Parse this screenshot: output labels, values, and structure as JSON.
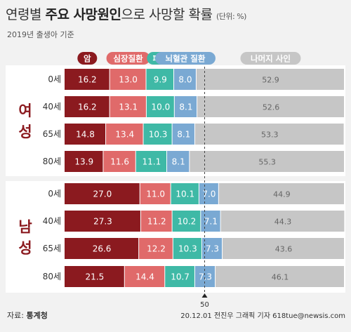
{
  "header": {
    "title_pre": "연령별 ",
    "title_bold": "주요 사망원인",
    "title_post": "으로 사망할 확률",
    "unit": "(단위: %)",
    "subtitle": "2019년 출생아 기준"
  },
  "footer": {
    "source_label": "자료: ",
    "source_name": "통계청",
    "credit": "20.12.01 전진우 그래픽 기자 618tue@newsis.com"
  },
  "chart_data": {
    "type": "bar",
    "stacked": true,
    "orientation": "horizontal",
    "legend_position": "top",
    "reference_line": {
      "value": 50,
      "label": "50"
    },
    "series": [
      {
        "name": "암",
        "color": "#8b1a1f"
      },
      {
        "name": "심장질환",
        "color": "#e06a6a"
      },
      {
        "name": "폐렴",
        "color": "#3fb9a6"
      },
      {
        "name": "뇌혈관 질환",
        "color": "#7aa9d3"
      },
      {
        "name": "나머지 사인",
        "color": "#c6c6c6"
      }
    ],
    "groups": [
      {
        "name": "여성",
        "rows": [
          {
            "age": "0세",
            "values": [
              16.2,
              13.0,
              9.9,
              8.0,
              52.9
            ]
          },
          {
            "age": "40세",
            "values": [
              16.2,
              13.1,
              10.0,
              8.1,
              52.6
            ]
          },
          {
            "age": "65세",
            "values": [
              14.8,
              13.4,
              10.3,
              8.1,
              53.3
            ]
          },
          {
            "age": "80세",
            "values": [
              13.9,
              11.6,
              11.1,
              8.1,
              55.3
            ]
          }
        ]
      },
      {
        "name": "남성",
        "rows": [
          {
            "age": "0세",
            "values": [
              27.0,
              11.0,
              10.1,
              7.0,
              44.9
            ]
          },
          {
            "age": "40세",
            "values": [
              27.3,
              11.2,
              10.2,
              7.1,
              44.3
            ]
          },
          {
            "age": "65세",
            "values": [
              26.6,
              12.2,
              10.3,
              7.3,
              43.6
            ]
          },
          {
            "age": "80세",
            "values": [
              21.5,
              14.4,
              10.7,
              7.3,
              46.1
            ]
          }
        ]
      }
    ]
  }
}
